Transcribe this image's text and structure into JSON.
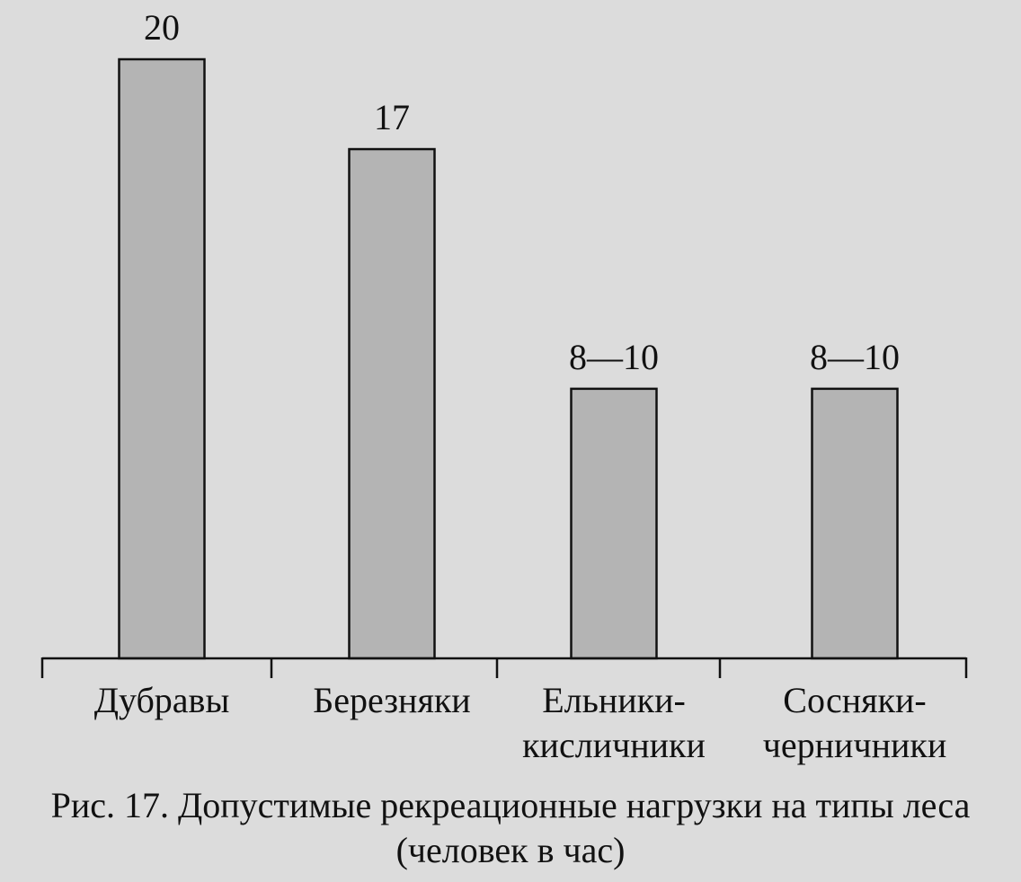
{
  "figure": {
    "caption_line1": "Рис. 17. Допустимые рекреационные нагрузки на типы леса",
    "caption_line2": "(человек в час)"
  },
  "chart_data": {
    "type": "bar",
    "categories": [
      [
        "Дубравы"
      ],
      [
        "Березняки"
      ],
      [
        "Ельники-",
        "кисличники"
      ],
      [
        "Сосняки-",
        "черничники"
      ]
    ],
    "values": [
      20,
      17,
      9,
      9
    ],
    "value_labels": [
      "20",
      "17",
      "8—10",
      "8—10"
    ],
    "ylim": [
      0,
      20
    ],
    "grid": false,
    "legend": "none",
    "colors": {
      "bar_fill": "#b4b4b4",
      "bar_stroke": "#111111",
      "axis": "#111111",
      "text": "#111111",
      "background": "#dcdcdc"
    }
  }
}
